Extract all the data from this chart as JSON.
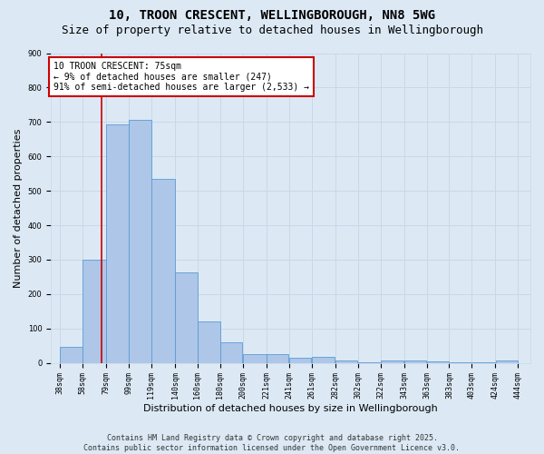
{
  "title": "10, TROON CRESCENT, WELLINGBOROUGH, NN8 5WG",
  "subtitle": "Size of property relative to detached houses in Wellingborough",
  "xlabel": "Distribution of detached houses by size in Wellingborough",
  "ylabel": "Number of detached properties",
  "bar_values": [
    47,
    300,
    693,
    706,
    535,
    263,
    120,
    59,
    25,
    25,
    16,
    19,
    8,
    3,
    7,
    7,
    4,
    2,
    1,
    7
  ],
  "categories": [
    "38sqm",
    "58sqm",
    "79sqm",
    "99sqm",
    "119sqm",
    "140sqm",
    "160sqm",
    "180sqm",
    "200sqm",
    "221sqm",
    "241sqm",
    "261sqm",
    "282sqm",
    "302sqm",
    "322sqm",
    "343sqm",
    "363sqm",
    "383sqm",
    "403sqm",
    "424sqm",
    "444sqm"
  ],
  "bar_left_edges": [
    38,
    58,
    79,
    99,
    119,
    140,
    160,
    180,
    200,
    221,
    241,
    261,
    282,
    302,
    322,
    343,
    363,
    383,
    403,
    424
  ],
  "bar_widths": [
    20,
    21,
    20,
    20,
    21,
    20,
    20,
    20,
    21,
    20,
    20,
    21,
    20,
    20,
    21,
    20,
    20,
    20,
    21,
    20
  ],
  "bar_color": "#aec6e8",
  "bar_edge_color": "#5b9bd5",
  "property_line_x": 75,
  "annotation_text": "10 TROON CRESCENT: 75sqm\n← 9% of detached houses are smaller (247)\n91% of semi-detached houses are larger (2,533) →",
  "annotation_box_color": "#ffffff",
  "annotation_box_edge_color": "#cc0000",
  "annotation_text_color": "#000000",
  "vline_color": "#cc0000",
  "ylim": [
    0,
    900
  ],
  "xlim": [
    30,
    455
  ],
  "grid_color": "#c8d8e8",
  "bg_color": "#dce9f5",
  "footer": "Contains HM Land Registry data © Crown copyright and database right 2025.\nContains public sector information licensed under the Open Government Licence v3.0.",
  "title_fontsize": 10,
  "subtitle_fontsize": 9,
  "ylabel_fontsize": 8,
  "xlabel_fontsize": 8,
  "footer_fontsize": 6,
  "tick_fontsize": 6,
  "annotation_fontsize": 7
}
